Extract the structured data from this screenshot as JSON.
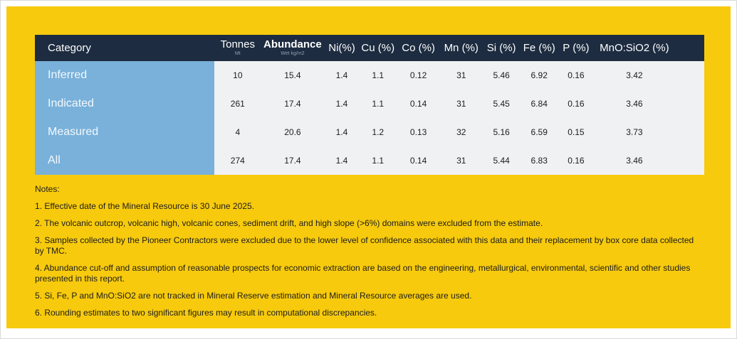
{
  "page": {
    "background_color": "#ffffff",
    "panel_color": "#F7CA0D"
  },
  "table": {
    "header_bg": "#1D2C40",
    "category_col_bg": "#79B1DA",
    "body_bg": "#F0F1F2",
    "columns": [
      {
        "label": "Category",
        "sublabel": ""
      },
      {
        "label": "Tonnes",
        "sublabel": "Mt"
      },
      {
        "label": "Abundance",
        "sublabel": "Wet kg/m2"
      },
      {
        "label": "Ni(%)",
        "sublabel": ""
      },
      {
        "label": "Cu (%)",
        "sublabel": ""
      },
      {
        "label": "Co (%)",
        "sublabel": ""
      },
      {
        "label": "Mn (%)",
        "sublabel": ""
      },
      {
        "label": "Si (%)",
        "sublabel": ""
      },
      {
        "label": "Fe (%)",
        "sublabel": ""
      },
      {
        "label": "P (%)",
        "sublabel": ""
      },
      {
        "label": "MnO:SiO2 (%)",
        "sublabel": ""
      }
    ],
    "rows": [
      {
        "category": "Inferred",
        "values": [
          "10",
          "15.4",
          "1.4",
          "1.1",
          "0.12",
          "31",
          "5.46",
          "6.92",
          "0.16",
          "3.42"
        ]
      },
      {
        "category": "Indicated",
        "values": [
          "261",
          "17.4",
          "1.4",
          "1.1",
          "0.14",
          "31",
          "5.45",
          "6.84",
          "0.16",
          "3.46"
        ]
      },
      {
        "category": "Measured",
        "values": [
          "4",
          "20.6",
          "1.4",
          "1.2",
          "0.13",
          "32",
          "5.16",
          "6.59",
          "0.15",
          "3.73"
        ]
      },
      {
        "category": "All",
        "values": [
          "274",
          "17.4",
          "1.4",
          "1.1",
          "0.14",
          "31",
          "5.44",
          "6.83",
          "0.16",
          "3.46"
        ]
      }
    ]
  },
  "notes": {
    "title": "Notes:",
    "items": [
      "1. Effective date of the Mineral Resource is 30 June 2025.",
      "2. The volcanic outcrop, volcanic high, volcanic cones, sediment drift, and high slope (>6%) domains were excluded from the estimate.",
      "3. Samples collected by the Pioneer Contractors were excluded due to the lower level of confidence associated with this data and their replacement by box core data collected by TMC.",
      "4. Abundance cut-off and assumption of reasonable prospects for economic extraction are based on the engineering, metallurgical, environmental, scientific and other studies presented in this report.",
      "5. Si, Fe, P and MnO:SiO2 are not tracked in Mineral Reserve estimation and Mineral Resource averages are used.",
      "6. Rounding estimates to two significant figures may result in computational discrepancies."
    ]
  }
}
